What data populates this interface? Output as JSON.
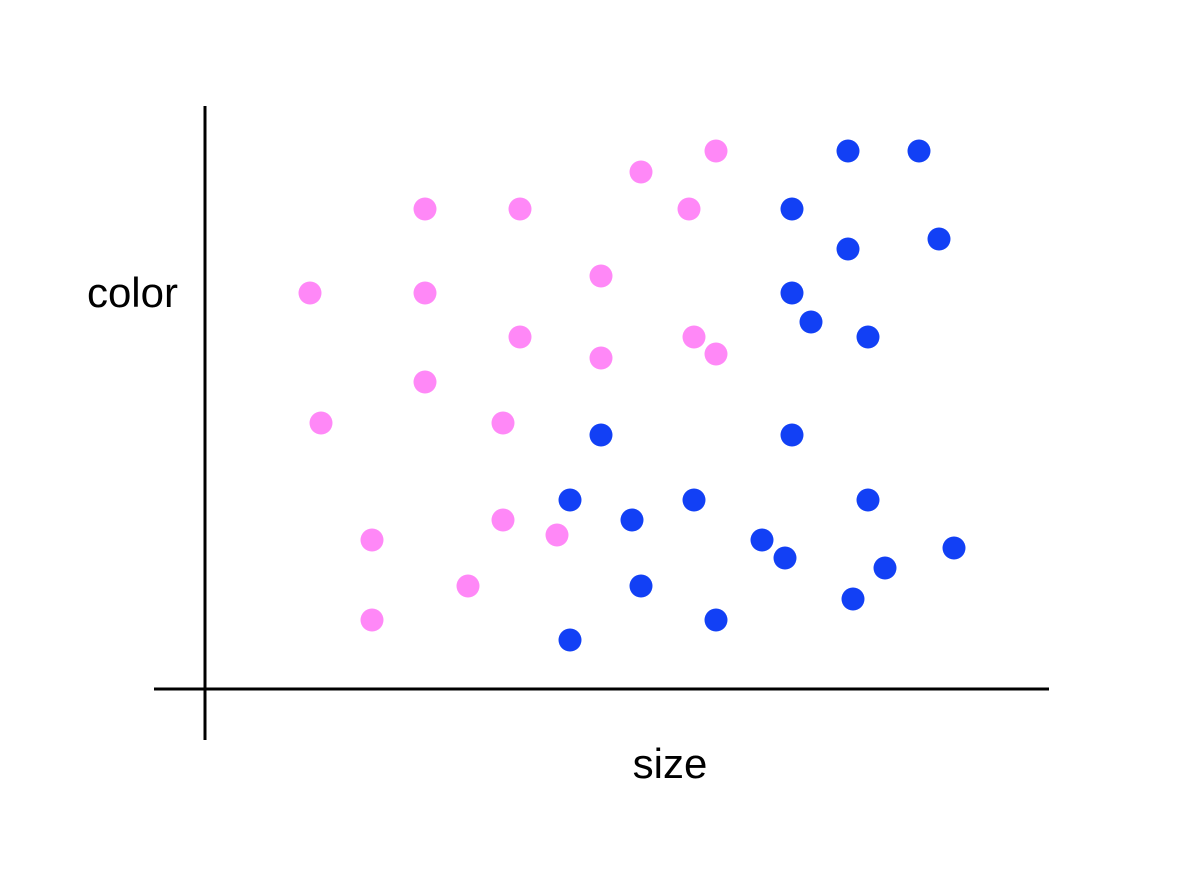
{
  "chart_data": {
    "type": "scatter",
    "x_label": "size",
    "y_label": "color",
    "xlim": [
      0,
      845
    ],
    "ylim": [
      0,
      583
    ],
    "series": [
      {
        "color": "#ff88f7",
        "x": [
          511,
          436,
          220,
          315,
          484,
          396,
          105,
          220,
          315,
          489,
          396,
          511,
          220,
          116,
          298,
          167,
          298,
          352,
          263,
          167
        ],
        "values": [
          538,
          517,
          480,
          480,
          480,
          413,
          396,
          396,
          352,
          352,
          331,
          335,
          307,
          266,
          266,
          149,
          169,
          154,
          103,
          69
        ]
      },
      {
        "color": "#1240f5",
        "x": [
          643,
          714,
          587,
          643,
          734,
          587,
          606,
          663,
          396,
          587,
          365,
          489,
          663,
          427,
          557,
          580,
          749,
          680,
          436,
          648,
          511,
          365
        ],
        "values": [
          538,
          538,
          480,
          440,
          450,
          396,
          367,
          352,
          254,
          254,
          189,
          189,
          189,
          169,
          149,
          131,
          141,
          121,
          103,
          90,
          69,
          49
        ]
      }
    ]
  }
}
